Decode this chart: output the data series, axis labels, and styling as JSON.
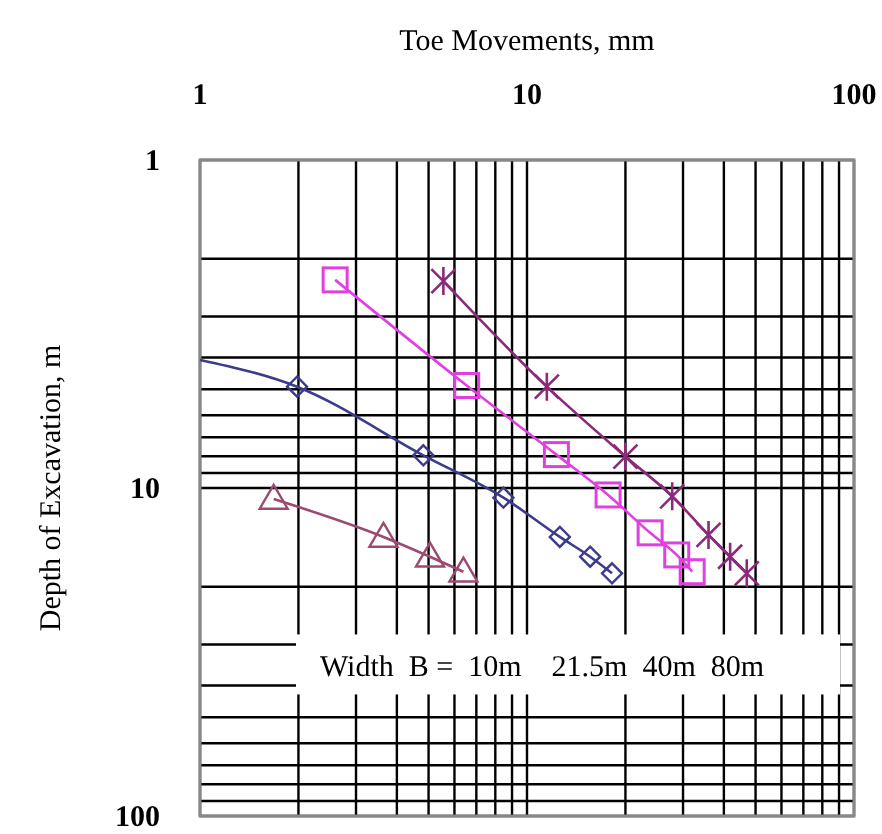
{
  "chart_data": {
    "type": "line",
    "xlabel": "Toe Movements, mm",
    "ylabel": "Depth of Excavation, m",
    "log": "xy",
    "grid": true,
    "xlim": [
      1,
      100
    ],
    "ylim": [
      100,
      1
    ],
    "xticks": [
      1,
      {
        "value": 2,
        "label": null
      },
      {
        "value": 3,
        "label": null
      },
      {
        "value": 4,
        "label": null
      },
      {
        "value": 5,
        "label": null
      },
      {
        "value": 6,
        "label": null
      },
      {
        "value": 7,
        "label": null
      },
      {
        "value": 8,
        "label": null
      },
      {
        "value": 9,
        "label": null
      },
      10,
      {
        "value": 20,
        "label": null
      },
      {
        "value": 30,
        "label": null
      },
      {
        "value": 40,
        "label": null
      },
      {
        "value": 50,
        "label": null
      },
      {
        "value": 60,
        "label": null
      },
      {
        "value": 70,
        "label": null
      },
      {
        "value": 80,
        "label": null
      },
      {
        "value": 90,
        "label": null
      },
      100
    ],
    "yticks": [
      1,
      {
        "value": 2,
        "label": null
      },
      {
        "value": 3,
        "label": null
      },
      {
        "value": 4,
        "label": null
      },
      {
        "value": 5,
        "label": null
      },
      {
        "value": 6,
        "label": null
      },
      {
        "value": 7,
        "label": null
      },
      {
        "value": 8,
        "label": null
      },
      {
        "value": 9,
        "label": null
      },
      10,
      {
        "value": 20,
        "label": null
      },
      {
        "value": 30,
        "label": null
      },
      {
        "value": 40,
        "label": null
      },
      {
        "value": 50,
        "label": null
      },
      {
        "value": 60,
        "label": null
      },
      {
        "value": 70,
        "label": null
      },
      {
        "value": 80,
        "label": null
      },
      {
        "value": 90,
        "label": null
      },
      100
    ],
    "series": [
      {
        "type": "line",
        "marker": "triangle",
        "color": "#9b4a72",
        "x": [
          1.68,
          3.64,
          5.05,
          6.39
        ],
        "values": [
          10.8,
          14.1,
          16.2,
          18.0
        ]
      },
      {
        "type": "line",
        "marker": "none",
        "color": "#3c3c8c",
        "x": [
          1,
          1.98,
          4.82,
          8.47,
          12.6,
          15.6,
          18.2
        ],
        "values": [
          4.07,
          4.91,
          7.95,
          10.7,
          14.1,
          16.2,
          18.2
        ]
      },
      {
        "type": "scatter",
        "marker": "diamond",
        "color": "#3c3c8c",
        "x": [
          1.98,
          4.82,
          8.47,
          12.6,
          15.6,
          18.2
        ],
        "values": [
          4.91,
          7.95,
          10.7,
          14.1,
          16.2,
          18.2
        ]
      },
      {
        "type": "line",
        "marker": "square",
        "color": "#e040e0",
        "x": [
          2.59,
          6.54,
          12.3,
          17.7,
          23.8,
          28.7,
          32.0
        ],
        "values": [
          2.32,
          4.87,
          7.91,
          10.5,
          13.7,
          16.0,
          18.0
        ]
      },
      {
        "type": "line",
        "marker": "cross",
        "color": "#8b2a7a",
        "x": [
          5.55,
          11.5,
          20.0,
          27.8,
          35.9,
          41.8,
          47.0
        ],
        "values": [
          2.34,
          4.91,
          8.02,
          10.6,
          13.9,
          16.2,
          18.2
        ]
      }
    ],
    "annotations": [
      "Width  B =  10m    21.5m  40m  80m"
    ]
  }
}
